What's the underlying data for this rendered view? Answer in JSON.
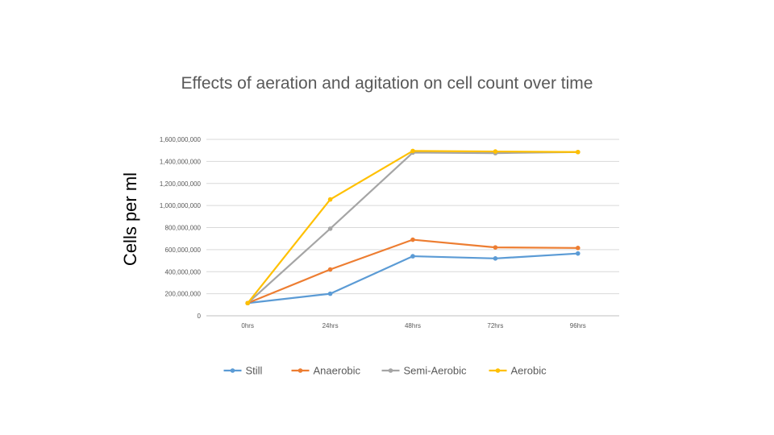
{
  "chart_data": {
    "type": "line",
    "title": "Effects of aeration and agitation on cell count over time",
    "xlabel": "",
    "ylabel": "Cells per ml",
    "categories": [
      "0hrs",
      "24hrs",
      "48hrs",
      "72hrs",
      "96hrs"
    ],
    "ylim": [
      0,
      1600000000
    ],
    "yticks": [
      0,
      200000000,
      400000000,
      600000000,
      800000000,
      1000000000,
      1200000000,
      1400000000,
      1600000000
    ],
    "ytick_labels": [
      "0",
      "200,000,000",
      "400,000,000",
      "600,000,000",
      "800,000,000",
      "1,000,000,000",
      "1,200,000,000",
      "1,400,000,000",
      "1,600,000,000"
    ],
    "grid": true,
    "legend_position": "bottom",
    "series": [
      {
        "name": "Still",
        "color": "#5B9BD5",
        "values": [
          115000000,
          200000000,
          540000000,
          520000000,
          565000000
        ]
      },
      {
        "name": "Anaerobic",
        "color": "#ED7D31",
        "values": [
          115000000,
          420000000,
          690000000,
          620000000,
          615000000
        ]
      },
      {
        "name": "Semi-Aerobic",
        "color": "#A5A5A5",
        "values": [
          115000000,
          790000000,
          1480000000,
          1475000000,
          1485000000
        ]
      },
      {
        "name": "Aerobic",
        "color": "#FFC000",
        "values": [
          115000000,
          1055000000,
          1495000000,
          1490000000,
          1485000000
        ]
      }
    ]
  }
}
